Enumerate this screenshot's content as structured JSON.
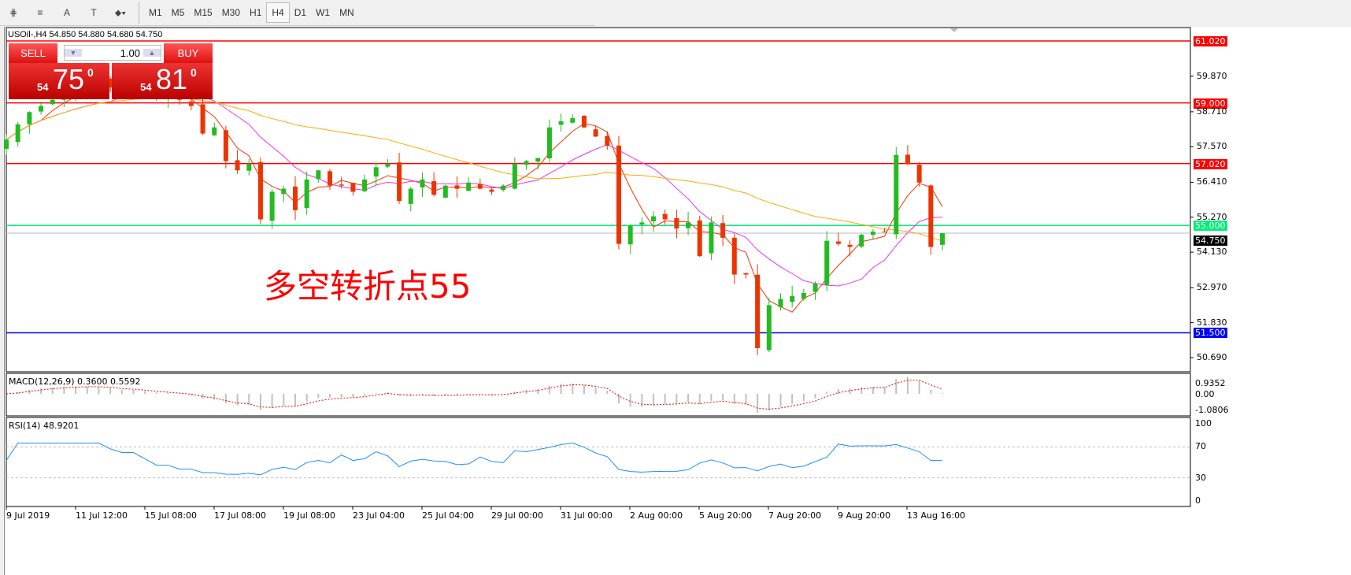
{
  "toolbar": {
    "tools": [
      {
        "name": "elliott-icon",
        "glyph": "⋕"
      },
      {
        "name": "fibo-icon",
        "glyph": "≡"
      },
      {
        "name": "text-icon",
        "glyph": "A"
      },
      {
        "name": "text-label-icon",
        "glyph": "T"
      },
      {
        "name": "arrows-icon",
        "glyph": "⬥▾"
      }
    ],
    "timeframes": [
      "M1",
      "M5",
      "M15",
      "M30",
      "H1",
      "H4",
      "D1",
      "W1",
      "MN"
    ],
    "active_timeframe": "H4"
  },
  "chart": {
    "title": "USOil-,H4  54.850 54.880 54.680 54.750",
    "annotation": "多空转折点55",
    "trade_panel": {
      "sell": "SELL",
      "buy": "BUY",
      "lot": "1.00",
      "sell_prefix": "54",
      "sell_big": "75",
      "sell_sup": "0",
      "buy_prefix": "54",
      "buy_big": "81",
      "buy_sup": "0"
    },
    "price_ticks": [
      "59.870",
      "58.710",
      "57.570",
      "56.410",
      "55.270",
      "54.130",
      "52.970",
      "51.830",
      "50.690"
    ],
    "levels": [
      {
        "value": "61.020",
        "color": "#ff0000"
      },
      {
        "value": "59.000",
        "color": "#ff0000"
      },
      {
        "value": "57.020",
        "color": "#ff0000"
      },
      {
        "value": "55.000",
        "color": "#00ee77"
      },
      {
        "value": "51.500",
        "color": "#0000ff"
      }
    ],
    "current_price": "54.750",
    "macd": {
      "label": "MACD(12,26,9) 0.3600 0.5592",
      "ticks": [
        "0.9352",
        "0.00",
        "-1.0806"
      ]
    },
    "rsi": {
      "label": "RSI(14) 48.9201",
      "ticks": [
        "100",
        "70",
        "30",
        "0"
      ]
    },
    "time_labels": [
      "9 Jul 2019",
      "11 Jul 12:00",
      "15 Jul 08:00",
      "17 Jul 08:00",
      "19 Jul 08:00",
      "23 Jul 04:00",
      "25 Jul 04:00",
      "29 Jul 00:00",
      "31 Jul 00:00",
      "2 Aug 00:00",
      "5 Aug 20:00",
      "7 Aug 20:00",
      "9 Aug 20:00",
      "13 Aug 16:00"
    ]
  },
  "chart_data": {
    "type": "candlestick",
    "symbol": "USOil-",
    "timeframe": "H4",
    "ylim": [
      50.2,
      61.3
    ],
    "closes": [
      57.8,
      58.3,
      58.7,
      58.9,
      59.1,
      59.3,
      59.5,
      59.6,
      59.7,
      59.5,
      59.4,
      59.6,
      59.4,
      59.2,
      59.3,
      59.1,
      58.9,
      58.0,
      58.2,
      57.1,
      56.8,
      57.0,
      55.2,
      56.1,
      56.2,
      55.5,
      56.5,
      56.8,
      56.3,
      56.3,
      56.1,
      56.5,
      56.9,
      57.0,
      55.8,
      56.2,
      56.5,
      56.0,
      56.3,
      56.2,
      56.4,
      56.2,
      56.1,
      56.3,
      57.0,
      57.1,
      57.2,
      58.2,
      58.4,
      58.5,
      58.2,
      57.9,
      57.6,
      54.4,
      55.0,
      55.1,
      55.3,
      55.2,
      54.9,
      55.1,
      54.0,
      55.1,
      54.6,
      53.4,
      53.4,
      51.0,
      52.4,
      52.6,
      52.7,
      52.8,
      53.1,
      54.5,
      54.4,
      54.3,
      54.7,
      54.8,
      54.8,
      57.3,
      57.0,
      56.4,
      54.3,
      54.75
    ],
    "colors": {
      "bull": "#22bb22",
      "bear": "#ee3300",
      "ma_fast": "#ff3300",
      "ma_mid": "#ee33ee",
      "ma_slow": "#ffaa00",
      "rsi": "#1e90ff",
      "macd_signal": "#ff0000",
      "macd_hist": "#c0c0c0"
    }
  }
}
